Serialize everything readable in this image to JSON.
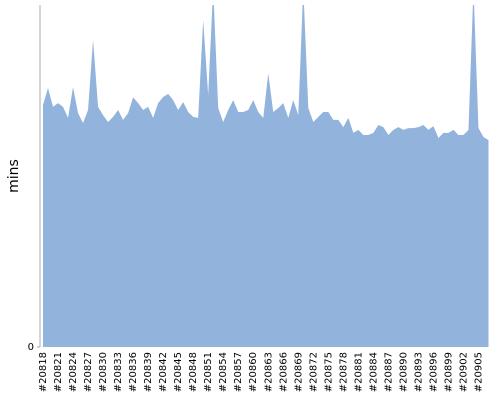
{
  "chart_data": {
    "type": "area",
    "y_label": "mins",
    "color": "#92b3db",
    "ylim": [
      0,
      100
    ],
    "yticks": [
      0
    ],
    "categories": [
      "#20818",
      null,
      null,
      "#20821",
      null,
      null,
      "#20824",
      null,
      null,
      "#20827",
      null,
      null,
      "#20830",
      null,
      null,
      "#20833",
      null,
      null,
      "#20836",
      null,
      null,
      "#20839",
      null,
      null,
      "#20842",
      null,
      null,
      "#20845",
      null,
      null,
      "#20848",
      null,
      null,
      "#20851",
      null,
      null,
      "#20854",
      null,
      null,
      "#20857",
      null,
      null,
      "#20860",
      null,
      null,
      "#20863",
      null,
      null,
      "#20866",
      null,
      null,
      "#20869",
      null,
      null,
      "#20872",
      null,
      null,
      "#20875",
      null,
      null,
      "#20878",
      null,
      null,
      "#20881",
      null,
      null,
      "#20884",
      null,
      null,
      "#20887",
      null,
      null,
      "#20890",
      null,
      null,
      "#20893",
      null,
      null,
      "#20896",
      null,
      null,
      "#20899",
      null,
      null,
      "#20902",
      null,
      null,
      "#20905",
      null,
      null
    ],
    "values": [
      70.8,
      75.7,
      70.2,
      71.3,
      70.2,
      67,
      76,
      68.4,
      65.5,
      69.3,
      89.8,
      70.2,
      67.8,
      65.8,
      67.3,
      69.3,
      66.4,
      68.4,
      73,
      71.3,
      69.3,
      70.2,
      67,
      71.3,
      73.1,
      74,
      72.2,
      69.3,
      71.6,
      68.7,
      67.3,
      67,
      95.6,
      73.7,
      105,
      69.9,
      65.8,
      69.3,
      72.2,
      68.7,
      68.7,
      69.3,
      72.2,
      68.7,
      67,
      80,
      68.7,
      69.9,
      71.3,
      67,
      72.2,
      67.8,
      105,
      69.9,
      65.8,
      67.3,
      68.7,
      68.7,
      66.4,
      66.4,
      64.3,
      67,
      62.6,
      63.5,
      62,
      62,
      62.6,
      64.9,
      64.3,
      62,
      63.5,
      64.3,
      63.5,
      64,
      64,
      64.3,
      64.9,
      63.5,
      64.6,
      61.1,
      62.6,
      62.6,
      63.5,
      62,
      62,
      63.5,
      105,
      64,
      61.4,
      60.5
    ]
  }
}
